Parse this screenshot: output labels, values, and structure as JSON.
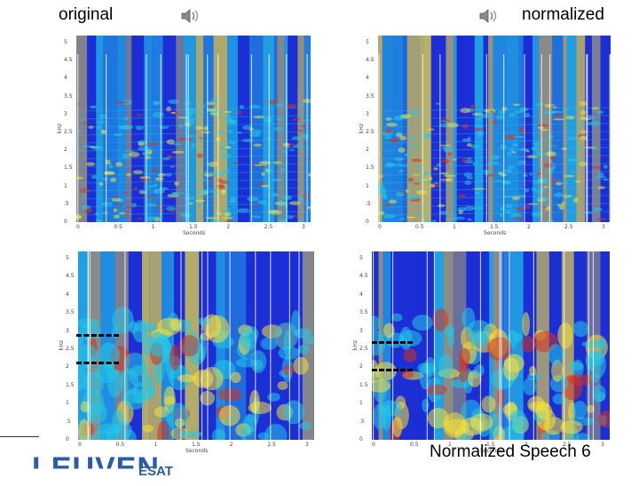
{
  "labels": {
    "original": "original",
    "normalized": "normalized",
    "caption": "Normalized Speech 6"
  },
  "icons": {
    "speaker": "speaker-icon"
  },
  "logo": {
    "name": "LEUVEN",
    "unit": "ESAT",
    "color": "#2a5caa"
  },
  "spectrogram_axes": {
    "ylabel": "kHz",
    "xlabel": "Seconds",
    "yticks": [
      "0",
      ".5",
      "1",
      "1.5",
      "2",
      "2.5",
      "3",
      "3.5",
      "4",
      "4.5",
      "5"
    ],
    "xticks": [
      "0",
      "0.5",
      "1",
      "1.5",
      "2",
      "2.5",
      "3"
    ]
  },
  "colors": {
    "spec_low": "#1c2fd6",
    "spec_mid": "#22c8e8",
    "spec_high": "#f5e23a",
    "spec_peak": "#d8321c"
  }
}
